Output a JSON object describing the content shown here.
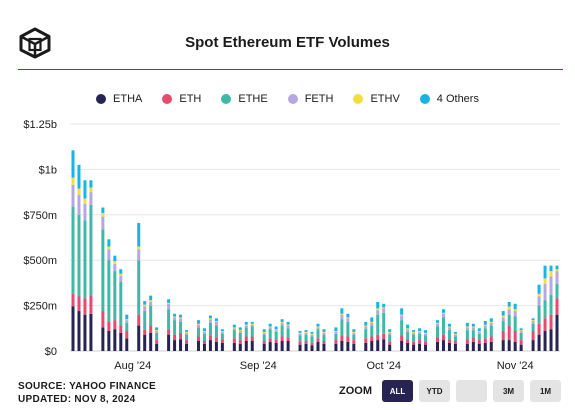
{
  "title": "Spot Ethereum ETF Volumes",
  "legend": [
    {
      "name": "ETHA",
      "color": "#272353"
    },
    {
      "name": "ETH",
      "color": "#e8496e"
    },
    {
      "name": "ETHE",
      "color": "#3fb8a6"
    },
    {
      "name": "FETH",
      "color": "#b5a8e0"
    },
    {
      "name": "ETHV",
      "color": "#f3df3c"
    },
    {
      "name": "4 Others",
      "color": "#16b5e5"
    }
  ],
  "footer": {
    "source": "SOURCE: YAHOO FINANCE",
    "updated": "UPDATED: NOV 8, 2024"
  },
  "zoom": {
    "label": "ZOOM",
    "buttons": [
      {
        "label": "ALL",
        "active": true
      },
      {
        "label": "YTD",
        "active": false
      },
      {
        "label": "",
        "active": false
      },
      {
        "label": "3M",
        "active": false
      },
      {
        "label": "1M",
        "active": false
      }
    ]
  },
  "chart_data": {
    "type": "bar",
    "stacked": true,
    "y_ticks": [
      "$0",
      "$250m",
      "$500m",
      "$750m",
      "$1b",
      "$1.25b"
    ],
    "ylim": [
      0,
      1250
    ],
    "x_ticks": [
      {
        "label": "Aug '24",
        "index": 10
      },
      {
        "label": "Sep '24",
        "index": 31
      },
      {
        "label": "Oct '24",
        "index": 52
      },
      {
        "label": "Nov '24",
        "index": 74
      }
    ],
    "series_names": [
      "ETHA",
      "ETH",
      "ETHE",
      "FETH",
      "ETHV",
      "4 Others"
    ],
    "series_colors": [
      "#272353",
      "#e8496e",
      "#3fb8a6",
      "#b5a8e0",
      "#f3df3c",
      "#16b5e5"
    ],
    "bars": [
      [
        245,
        70,
        480,
        120,
        40,
        150
      ],
      [
        220,
        80,
        450,
        110,
        35,
        130
      ],
      [
        200,
        90,
        430,
        90,
        30,
        100
      ],
      [
        205,
        100,
        500,
        70,
        25,
        40
      ],
      null,
      [
        130,
        90,
        450,
        70,
        20,
        30
      ],
      [
        110,
        50,
        340,
        60,
        15,
        40
      ],
      [
        120,
        50,
        270,
        40,
        15,
        30
      ],
      [
        100,
        40,
        240,
        35,
        10,
        25
      ],
      [
        70,
        40,
        45,
        15,
        5,
        25
      ],
      null,
      [
        140,
        60,
        300,
        60,
        15,
        130
      ],
      [
        90,
        30,
        100,
        25,
        10,
        20
      ],
      [
        100,
        40,
        110,
        20,
        10,
        25
      ],
      [
        40,
        20,
        40,
        10,
        5,
        15
      ],
      null,
      [
        90,
        30,
        110,
        30,
        5,
        20
      ],
      [
        60,
        30,
        80,
        15,
        5,
        15
      ],
      [
        65,
        35,
        60,
        20,
        5,
        15
      ],
      [
        40,
        20,
        30,
        10,
        5,
        10
      ],
      null,
      [
        55,
        25,
        50,
        15,
        5,
        20
      ],
      [
        40,
        15,
        40,
        10,
        5,
        15
      ],
      [
        60,
        25,
        70,
        20,
        5,
        15
      ],
      [
        50,
        25,
        65,
        20,
        5,
        15
      ],
      [
        45,
        20,
        30,
        10,
        5,
        10
      ],
      null,
      [
        45,
        25,
        45,
        10,
        5,
        15
      ],
      [
        40,
        20,
        40,
        10,
        5,
        15
      ],
      [
        55,
        25,
        50,
        10,
        5,
        15
      ],
      [
        55,
        25,
        55,
        10,
        5,
        10
      ],
      null,
      [
        40,
        15,
        35,
        10,
        5,
        15
      ],
      [
        50,
        20,
        50,
        10,
        5,
        15
      ],
      [
        45,
        20,
        40,
        10,
        5,
        15
      ],
      [
        55,
        25,
        60,
        15,
        5,
        15
      ],
      [
        55,
        20,
        50,
        15,
        5,
        15
      ],
      null,
      [
        35,
        15,
        35,
        10,
        5,
        10
      ],
      [
        40,
        15,
        35,
        10,
        5,
        10
      ],
      [
        30,
        15,
        35,
        10,
        5,
        10
      ],
      [
        50,
        20,
        50,
        10,
        5,
        15
      ],
      [
        40,
        15,
        35,
        10,
        5,
        15
      ],
      null,
      [
        40,
        20,
        35,
        10,
        5,
        20
      ],
      [
        55,
        30,
        90,
        25,
        5,
        30
      ],
      [
        50,
        30,
        80,
        20,
        5,
        20
      ],
      [
        40,
        20,
        30,
        10,
        5,
        15
      ],
      null,
      [
        45,
        25,
        50,
        15,
        5,
        20
      ],
      [
        55,
        25,
        60,
        15,
        5,
        25
      ],
      [
        60,
        30,
        110,
        25,
        10,
        35
      ],
      [
        65,
        30,
        115,
        25,
        5,
        20
      ],
      [
        35,
        15,
        40,
        10,
        5,
        15
      ],
      null,
      [
        55,
        30,
        85,
        25,
        5,
        35
      ],
      [
        45,
        20,
        40,
        15,
        5,
        20
      ],
      [
        35,
        15,
        40,
        10,
        5,
        10
      ],
      [
        40,
        20,
        35,
        10,
        5,
        15
      ],
      [
        35,
        15,
        35,
        10,
        5,
        15
      ],
      null,
      [
        50,
        25,
        60,
        15,
        5,
        15
      ],
      [
        60,
        30,
        95,
        20,
        5,
        20
      ],
      [
        45,
        20,
        50,
        15,
        5,
        15
      ],
      [
        40,
        15,
        25,
        10,
        5,
        10
      ],
      null,
      [
        40,
        25,
        50,
        15,
        5,
        20
      ],
      [
        50,
        25,
        40,
        15,
        5,
        15
      ],
      [
        40,
        20,
        35,
        10,
        5,
        15
      ],
      [
        45,
        25,
        55,
        15,
        5,
        20
      ],
      [
        50,
        30,
        60,
        15,
        5,
        20
      ],
      null,
      [
        60,
        50,
        55,
        20,
        10,
        25
      ],
      [
        60,
        80,
        60,
        30,
        15,
        25
      ],
      [
        50,
        60,
        80,
        30,
        10,
        30
      ],
      [
        35,
        25,
        40,
        10,
        5,
        10
      ],
      null,
      [
        60,
        50,
        40,
        15,
        5,
        10
      ],
      [
        90,
        60,
        100,
        50,
        15,
        50
      ],
      [
        110,
        70,
        100,
        90,
        30,
        70
      ],
      [
        120,
        80,
        110,
        100,
        30,
        30
      ],
      [
        200,
        90,
        80,
        70,
        10,
        20
      ]
    ]
  }
}
